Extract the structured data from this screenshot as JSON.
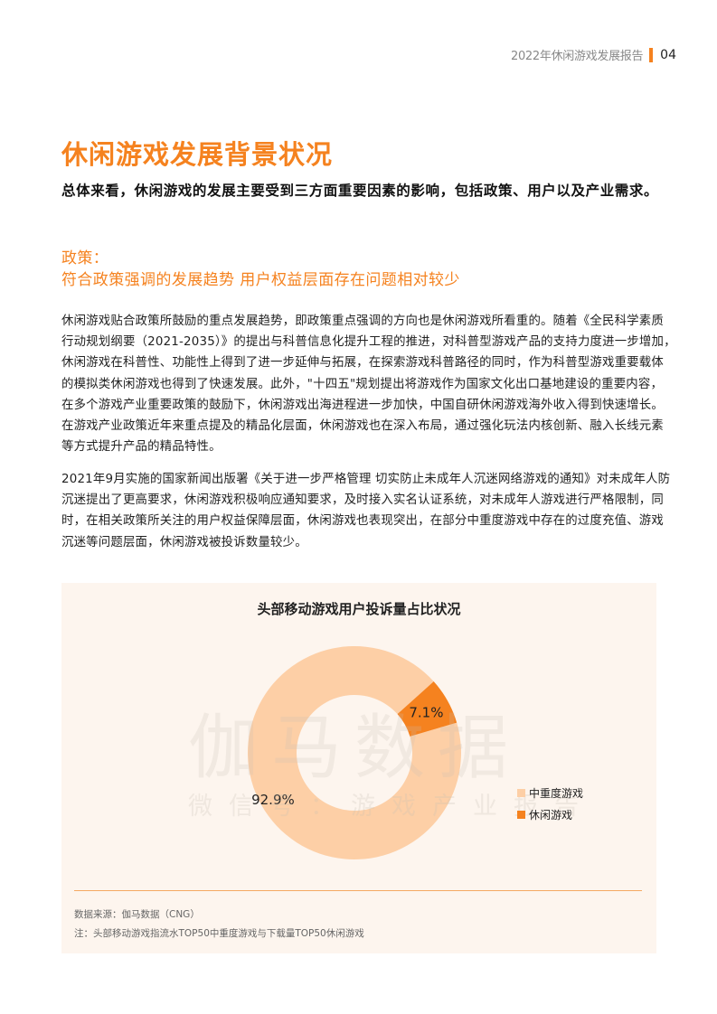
{
  "header": {
    "report_title": "2022年休闲游戏发展报告",
    "page_number": "04",
    "accent_color": "#f5821f"
  },
  "page_title": "休闲游戏发展背景状况",
  "subtitle": "总体来看，休闲游戏的发展主要受到三方面重要因素的影响，包括政策、用户以及产业需求。",
  "section": {
    "label": "政策：",
    "heading": "符合政策强调的发展趋势 用户权益层面存在问题相对较少"
  },
  "paragraph1": [
    "休闲游戏贴合政策所鼓励的重点发展趋势，即政策重点强调的方向也是休闲游戏所看重的。随着《全民科学素质",
    "行动规划纲要（2021-2035）》的提出与科普信息化提升工程的推进，对科普型游戏产品的支持力度进一步增加，",
    "休闲游戏在科普性、功能性上得到了进一步延伸与拓展，在探索游戏科普路径的同时，作为科普型游戏重要载体",
    "的模拟类休闲游戏也得到了快速发展。此外，\"十四五\"规划提出将游戏作为国家文化出口基地建设的重要内容，",
    "在多个游戏产业重要政策的鼓励下，休闲游戏出海进程进一步加快，中国自研休闲游戏海外收入得到快速增长。",
    "在游戏产业政策近年来重点提及的精品化层面，休闲游戏也在深入布局，通过强化玩法内核创新、融入长线元素",
    "等方式提升产品的精品特性。"
  ],
  "paragraph2": [
    "2021年9月实施的国家新闻出版署《关于进一步严格管理 切实防止未成年人沉迷网络游戏的通知》对未成年人防",
    "沉迷提出了更高要求，休闲游戏积极响应通知要求，及时接入实名认证系统，对未成年人游戏进行严格限制，同",
    "时，在相关政策所关注的用户权益保障层面，休闲游戏也表现突出，在部分中重度游戏中存在的过度充值、游戏",
    "沉迷等问题层面，休闲游戏被投诉数量较少。"
  ],
  "chart_data": {
    "type": "pie",
    "variant": "donut",
    "title": "头部移动游戏用户投诉量占比状况",
    "categories": [
      "中重度游戏",
      "休闲游戏"
    ],
    "values": [
      92.9,
      7.1
    ],
    "data_labels": [
      "92.9%",
      "7.1%"
    ],
    "colors": [
      "#fdcfa6",
      "#f5821f"
    ],
    "legend_position": "right"
  },
  "watermark": {
    "brand": "伽马数据",
    "wechat": "微信号：游戏产业报告"
  },
  "source": "数据来源：伽马数据（CNG）",
  "note": "注：头部移动游戏指流水TOP50中重度游戏与下载量TOP50休闲游戏"
}
